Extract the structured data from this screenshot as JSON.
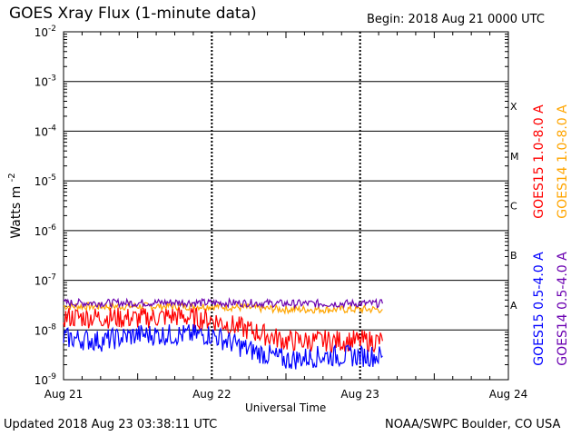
{
  "header": {
    "title": "GOES Xray Flux (1-minute data)",
    "begin_label": "Begin:",
    "begin_date": "2018 Aug 21 0000 UTC"
  },
  "footer": {
    "updated": "Updated 2018 Aug 23 03:38:11 UTC",
    "credit": "NOAA/SWPC Boulder, CO USA"
  },
  "colors": {
    "goes15_long": "#ff0000",
    "goes14_long": "#ffa500",
    "goes15_short": "#0000ff",
    "goes14_short": "#6a00b0"
  },
  "chart_data": {
    "type": "line",
    "y_scale": "log",
    "ylim": [
      1e-09,
      0.01
    ],
    "y_ticks": [
      {
        "base": "10",
        "exp": "-2"
      },
      {
        "base": "10",
        "exp": "-3"
      },
      {
        "base": "10",
        "exp": "-4"
      },
      {
        "base": "10",
        "exp": "-5"
      },
      {
        "base": "10",
        "exp": "-6"
      },
      {
        "base": "10",
        "exp": "-7"
      },
      {
        "base": "10",
        "exp": "-8"
      },
      {
        "base": "10",
        "exp": "-9"
      }
    ],
    "ylabel": {
      "text": "Watts m",
      "exp": "-2"
    },
    "xlabel": "Universal Time",
    "x_ticks": [
      "Aug 21",
      "Aug 22",
      "Aug 23",
      "Aug 24"
    ],
    "xlim": [
      "2018-08-21 00:00",
      "2018-08-24 00:00"
    ],
    "data_end": "2018-08-23 03:38",
    "flare_classes": [
      "X",
      "M",
      "C",
      "B",
      "A"
    ],
    "grid": true,
    "legend_position": "right",
    "series": [
      {
        "name": "GOES15 1.0-8.0 A",
        "color": "#ff0000",
        "times": [
          "2018-08-21 00:00",
          "2018-08-21 06:00",
          "2018-08-21 12:00",
          "2018-08-21 18:00",
          "2018-08-22 00:00",
          "2018-08-22 06:00",
          "2018-08-22 12:00",
          "2018-08-22 18:00",
          "2018-08-23 00:00",
          "2018-08-23 03:38"
        ],
        "values": [
          1.8e-08,
          1.8e-08,
          1.7e-08,
          1.9e-08,
          1.6e-08,
          1e-08,
          6e-09,
          6e-09,
          6e-09,
          6e-09
        ]
      },
      {
        "name": "GOES14 1.0-8.0 A",
        "color": "#ffa500",
        "times": [
          "2018-08-21 00:00",
          "2018-08-21 06:00",
          "2018-08-21 12:00",
          "2018-08-21 18:00",
          "2018-08-22 00:00",
          "2018-08-22 06:00",
          "2018-08-22 12:00",
          "2018-08-22 18:00",
          "2018-08-23 00:00",
          "2018-08-23 03:38"
        ],
        "values": [
          3e-08,
          3e-08,
          3e-08,
          3e-08,
          3e-08,
          2.8e-08,
          2.6e-08,
          2.6e-08,
          2.6e-08,
          2.6e-08
        ]
      },
      {
        "name": "GOES15 0.5-4.0 A",
        "color": "#0000ff",
        "times": [
          "2018-08-21 00:00",
          "2018-08-21 06:00",
          "2018-08-21 12:00",
          "2018-08-21 18:00",
          "2018-08-22 00:00",
          "2018-08-22 06:00",
          "2018-08-22 12:00",
          "2018-08-22 18:00",
          "2018-08-23 00:00",
          "2018-08-23 03:38"
        ],
        "values": [
          7e-09,
          6e-09,
          8e-09,
          8e-09,
          8e-09,
          4e-09,
          2.5e-09,
          3e-09,
          3e-09,
          3e-09
        ]
      },
      {
        "name": "GOES14 0.5-4.0 A",
        "color": "#6a00b0",
        "times": [
          "2018-08-21 00:00",
          "2018-08-21 06:00",
          "2018-08-21 12:00",
          "2018-08-21 18:00",
          "2018-08-22 00:00",
          "2018-08-22 06:00",
          "2018-08-22 12:00",
          "2018-08-22 18:00",
          "2018-08-23 00:00",
          "2018-08-23 03:38"
        ],
        "values": [
          3.5e-08,
          3.5e-08,
          3.5e-08,
          3.6e-08,
          3.5e-08,
          3.5e-08,
          3.4e-08,
          3.4e-08,
          3.4e-08,
          3.4e-08
        ]
      }
    ]
  }
}
